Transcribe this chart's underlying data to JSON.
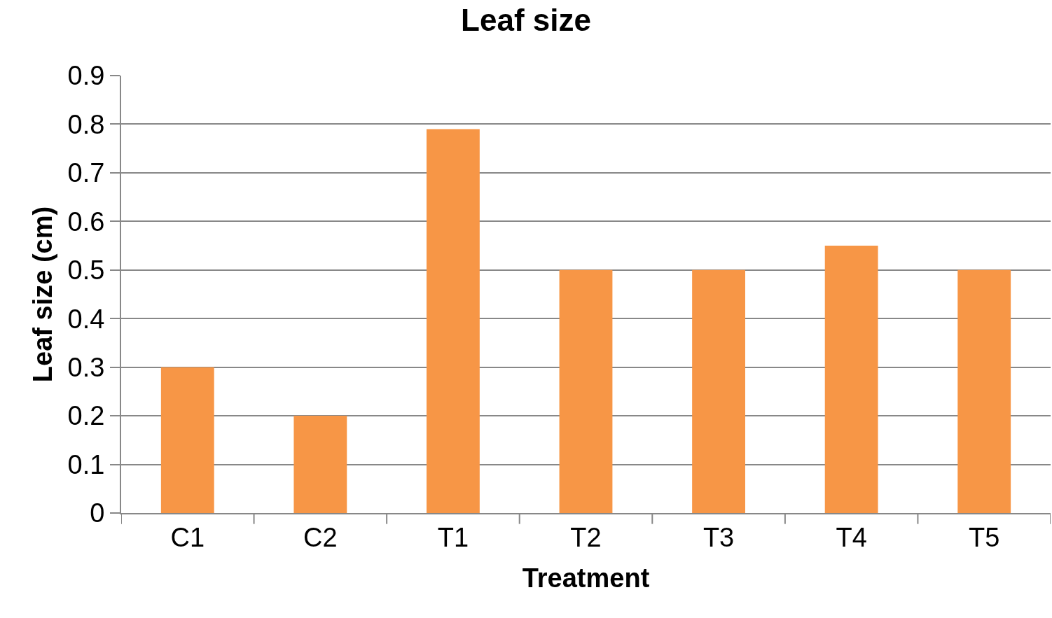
{
  "chart_data": {
    "type": "bar",
    "title": "Leaf size",
    "xlabel": "Treatment",
    "ylabel": "Leaf size (cm)",
    "categories": [
      "C1",
      "C2",
      "T1",
      "T2",
      "T3",
      "T4",
      "T5"
    ],
    "values": [
      0.3,
      0.2,
      0.79,
      0.5,
      0.5,
      0.55,
      0.5
    ],
    "color": "#f79646",
    "ylim": [
      0,
      0.9
    ],
    "yticks": [
      0,
      0.1,
      0.2,
      0.3,
      0.4,
      0.5,
      0.6,
      0.7,
      0.8,
      0.9
    ],
    "grid": "y"
  }
}
